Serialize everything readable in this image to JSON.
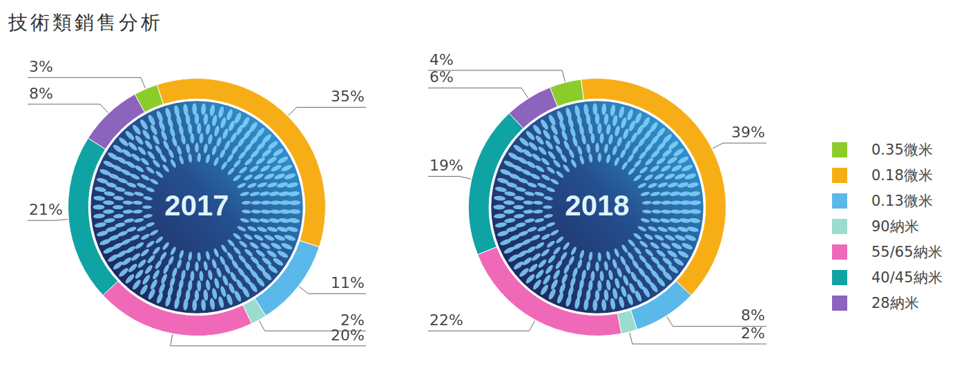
{
  "title": "技術類銷售分析",
  "chart_data": [
    {
      "type": "doughnut",
      "title": "2017",
      "categories": [
        "0.35微米",
        "0.18微米",
        "0.13微米",
        "90納米",
        "55/65納米",
        "40/45納米",
        "28納米"
      ],
      "values": [
        3,
        35,
        11,
        2,
        20,
        21,
        8
      ],
      "value_labels": [
        "3%",
        "35%",
        "11%",
        "2%",
        "20%",
        "21%",
        "8%"
      ],
      "colors": [
        "#8ccc2a",
        "#f7ae16",
        "#5bb8ea",
        "#9adccd",
        "#f069b8",
        "#10a3a4",
        "#8c63bd"
      ],
      "data_labels": true,
      "legend": "right"
    },
    {
      "type": "doughnut",
      "title": "2018",
      "categories": [
        "0.35微米",
        "0.18微米",
        "0.13微米",
        "90納米",
        "55/65納米",
        "40/45納米",
        "28納米"
      ],
      "values": [
        4,
        39,
        8,
        2,
        22,
        19,
        6
      ],
      "value_labels": [
        "4%",
        "39%",
        "8%",
        "2%",
        "22%",
        "19%",
        "6%"
      ],
      "colors": [
        "#8ccc2a",
        "#f7ae16",
        "#5bb8ea",
        "#9adccd",
        "#f069b8",
        "#10a3a4",
        "#8c63bd"
      ],
      "data_labels": true,
      "legend": "right"
    }
  ]
}
